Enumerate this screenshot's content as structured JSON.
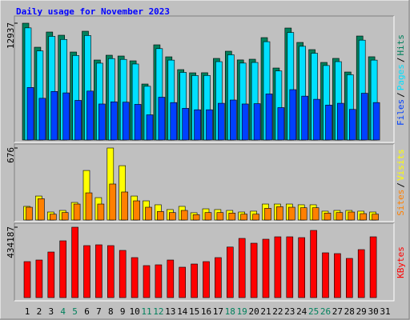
{
  "chart_data": [
    {
      "type": "bar",
      "title": "Daily usage for November 2023",
      "categories": [
        "1",
        "2",
        "3",
        "4",
        "5",
        "6",
        "7",
        "8",
        "9",
        "10",
        "11",
        "12",
        "13",
        "14",
        "15",
        "16",
        "17",
        "18",
        "19",
        "20",
        "21",
        "22",
        "23",
        "24",
        "25",
        "26",
        "27",
        "28",
        "29",
        "30",
        "31"
      ],
      "category_colors": [
        "#000000",
        "#000000",
        "#000000",
        "#00805c",
        "#00805c",
        "#000000",
        "#000000",
        "#000000",
        "#000000",
        "#000000",
        "#00805c",
        "#00805c",
        "#000000",
        "#000000",
        "#000000",
        "#000000",
        "#000000",
        "#00805c",
        "#00805c",
        "#000000",
        "#000000",
        "#000000",
        "#000000",
        "#000000",
        "#00805c",
        "#00805c",
        "#000000",
        "#000000",
        "#000000",
        "#000000",
        "#000000"
      ],
      "legend_separator": "/",
      "ylim": [
        0,
        12937
      ],
      "yticks": [
        12937
      ],
      "series": [
        {
          "name": "Hits",
          "color": "#00805c",
          "values": [
            12937,
            10278,
            11961,
            11607,
            9746,
            12050,
            8860,
            9392,
            9303,
            8771,
            6202,
            10543,
            9214,
            7797,
            7442,
            7450,
            9037,
            9835,
            8870,
            8949,
            11341,
            7974,
            12404,
            10809,
            10012,
            8594,
            9040,
            7531,
            11518,
            9220,
            null
          ]
        },
        {
          "name": "Pages",
          "color": "#00e0ff",
          "values": [
            12420,
            9870,
            11480,
            11140,
            9360,
            11570,
            8510,
            9020,
            8930,
            8420,
            5950,
            10120,
            8850,
            7490,
            7140,
            7150,
            8680,
            9440,
            8520,
            8590,
            10890,
            7650,
            11910,
            10380,
            9610,
            8250,
            8680,
            7230,
            11060,
            8850,
            null
          ]
        },
        {
          "name": "Files",
          "color": "#0040ff",
          "values": [
            5820,
            4620,
            5380,
            5220,
            4390,
            5420,
            3990,
            4230,
            4190,
            3950,
            2790,
            4740,
            4150,
            3510,
            3350,
            3350,
            4070,
            4430,
            3990,
            4030,
            5100,
            3590,
            5580,
            4860,
            4510,
            3870,
            4070,
            3390,
            5180,
            4150,
            null
          ]
        }
      ]
    },
    {
      "type": "bar",
      "ylim": [
        0,
        676
      ],
      "yticks": [
        676
      ],
      "series": [
        {
          "name": "Visits",
          "color": "#ffff00",
          "values": [
            128,
            225,
            75,
            90,
            165,
            465,
            210,
            676,
            510,
            225,
            180,
            143,
            98,
            128,
            68,
            105,
            98,
            90,
            75,
            83,
            150,
            150,
            150,
            143,
            143,
            83,
            90,
            90,
            83,
            75,
            null
          ]
        },
        {
          "name": "Sites",
          "color": "#ff8000",
          "values": [
            120,
            200,
            55,
            70,
            150,
            255,
            150,
            338,
            263,
            180,
            120,
            80,
            70,
            90,
            50,
            70,
            70,
            65,
            55,
            55,
            110,
            125,
            120,
            115,
            115,
            65,
            70,
            75,
            60,
            55,
            null
          ]
        }
      ]
    },
    {
      "type": "bar",
      "ylim": [
        0,
        434187
      ],
      "yticks": [
        434187
      ],
      "series": [
        {
          "name": "KBytes",
          "color": "#ff0000",
          "values": [
            222030,
            231900,
            281240,
            350310,
            434187,
            320710,
            325640,
            320710,
            291100,
            246700,
            197360,
            202290,
            231900,
            187490,
            207230,
            222030,
            246700,
            311840,
            365120,
            335510,
            360180,
            374980,
            374980,
            370050,
            414450,
            276300,
            271370,
            241770,
            296040,
            374980,
            null
          ]
        }
      ]
    }
  ]
}
